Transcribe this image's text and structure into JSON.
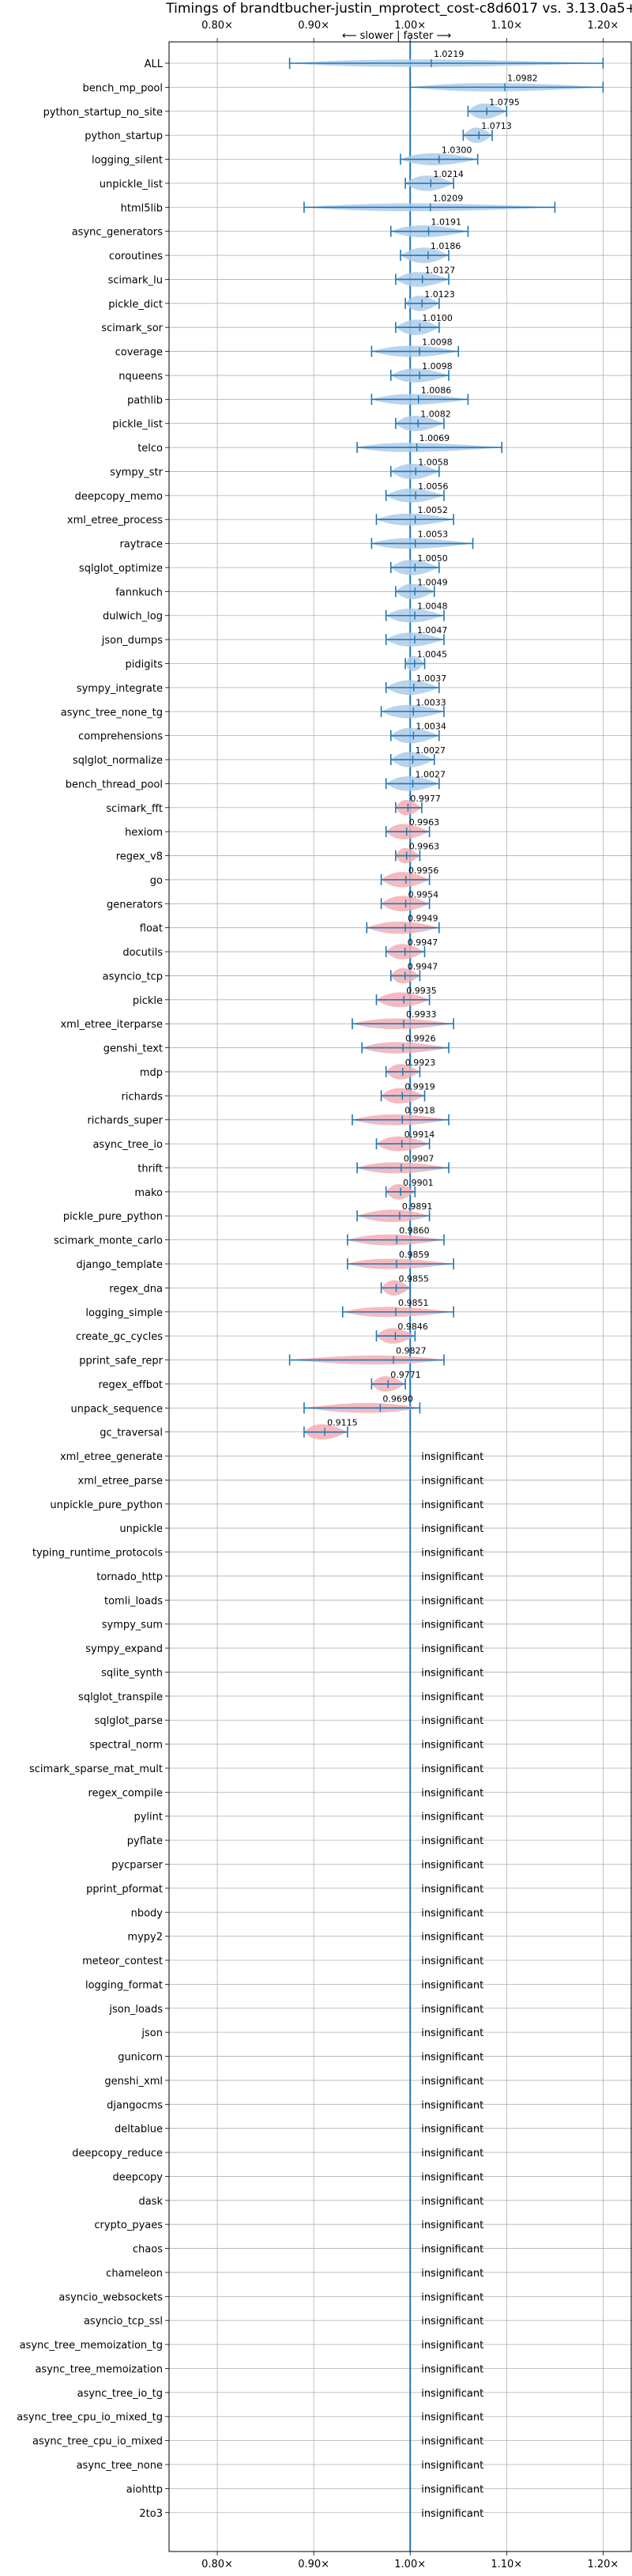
{
  "chart_data": {
    "type": "violin",
    "title": "Timings of brandtbucher-justin_mprotect_cost-c8d6017 vs. 3.13.0a5+",
    "annotation": "⟵ slower | faster ⟶",
    "xlim": [
      0.75,
      1.23
    ],
    "xticks": [
      0.8,
      0.9,
      1.0,
      1.1,
      1.2
    ],
    "xtick_labels": [
      "0.80×",
      "0.90×",
      "1.00×",
      "1.10×",
      "1.20×"
    ],
    "grid": true,
    "colors": {
      "faster": "#aecbea",
      "slower": "#f2aeb4",
      "line": "#1f77b4"
    },
    "insignificant_label": "insignificant",
    "benchmarks": [
      {
        "name": "ALL",
        "value": 1.0219,
        "label": "1.0219",
        "min": 0.875,
        "max": 1.2
      },
      {
        "name": "bench_mp_pool",
        "value": 1.0982,
        "label": "1.0982",
        "min": 1.0,
        "max": 1.2
      },
      {
        "name": "python_startup_no_site",
        "value": 1.0795,
        "label": "1.0795",
        "min": 1.06,
        "max": 1.1
      },
      {
        "name": "python_startup",
        "value": 1.0713,
        "label": "1.0713",
        "min": 1.055,
        "max": 1.085
      },
      {
        "name": "logging_silent",
        "value": 1.03,
        "label": "1.0300",
        "min": 0.99,
        "max": 1.07
      },
      {
        "name": "unpickle_list",
        "value": 1.0214,
        "label": "1.0214",
        "min": 0.995,
        "max": 1.045
      },
      {
        "name": "html5lib",
        "value": 1.0209,
        "label": "1.0209",
        "min": 0.89,
        "max": 1.15
      },
      {
        "name": "async_generators",
        "value": 1.0191,
        "label": "1.0191",
        "min": 0.98,
        "max": 1.06
      },
      {
        "name": "coroutines",
        "value": 1.0186,
        "label": "1.0186",
        "min": 0.99,
        "max": 1.04
      },
      {
        "name": "scimark_lu",
        "value": 1.0127,
        "label": "1.0127",
        "min": 0.985,
        "max": 1.04
      },
      {
        "name": "pickle_dict",
        "value": 1.0123,
        "label": "1.0123",
        "min": 0.995,
        "max": 1.03
      },
      {
        "name": "scimark_sor",
        "value": 1.01,
        "label": "1.0100",
        "min": 0.985,
        "max": 1.03
      },
      {
        "name": "coverage",
        "value": 1.0098,
        "label": "1.0098",
        "min": 0.96,
        "max": 1.05
      },
      {
        "name": "nqueens",
        "value": 1.0098,
        "label": "1.0098",
        "min": 0.98,
        "max": 1.04
      },
      {
        "name": "pathlib",
        "value": 1.0086,
        "label": "1.0086",
        "min": 0.96,
        "max": 1.06
      },
      {
        "name": "pickle_list",
        "value": 1.0082,
        "label": "1.0082",
        "min": 0.985,
        "max": 1.035
      },
      {
        "name": "telco",
        "value": 1.0069,
        "label": "1.0069",
        "min": 0.945,
        "max": 1.095
      },
      {
        "name": "sympy_str",
        "value": 1.0058,
        "label": "1.0058",
        "min": 0.98,
        "max": 1.03
      },
      {
        "name": "deepcopy_memo",
        "value": 1.0056,
        "label": "1.0056",
        "min": 0.975,
        "max": 1.035
      },
      {
        "name": "xml_etree_process",
        "value": 1.0052,
        "label": "1.0052",
        "min": 0.965,
        "max": 1.045
      },
      {
        "name": "raytrace",
        "value": 1.0053,
        "label": "1.0053",
        "min": 0.96,
        "max": 1.065
      },
      {
        "name": "sqlglot_optimize",
        "value": 1.005,
        "label": "1.0050",
        "min": 0.98,
        "max": 1.03
      },
      {
        "name": "fannkuch",
        "value": 1.0049,
        "label": "1.0049",
        "min": 0.985,
        "max": 1.025
      },
      {
        "name": "dulwich_log",
        "value": 1.0048,
        "label": "1.0048",
        "min": 0.975,
        "max": 1.035
      },
      {
        "name": "json_dumps",
        "value": 1.0047,
        "label": "1.0047",
        "min": 0.975,
        "max": 1.035
      },
      {
        "name": "pidigits",
        "value": 1.0045,
        "label": "1.0045",
        "min": 0.995,
        "max": 1.015
      },
      {
        "name": "sympy_integrate",
        "value": 1.0037,
        "label": "1.0037",
        "min": 0.975,
        "max": 1.03
      },
      {
        "name": "async_tree_none_tg",
        "value": 1.0033,
        "label": "1.0033",
        "min": 0.97,
        "max": 1.035
      },
      {
        "name": "comprehensions",
        "value": 1.0034,
        "label": "1.0034",
        "min": 0.98,
        "max": 1.03
      },
      {
        "name": "sqlglot_normalize",
        "value": 1.0027,
        "label": "1.0027",
        "min": 0.98,
        "max": 1.025
      },
      {
        "name": "bench_thread_pool",
        "value": 1.0027,
        "label": "1.0027",
        "min": 0.975,
        "max": 1.03
      },
      {
        "name": "scimark_fft",
        "value": 0.9977,
        "label": "0.9977",
        "min": 0.985,
        "max": 1.012
      },
      {
        "name": "hexiom",
        "value": 0.9963,
        "label": "0.9963",
        "min": 0.975,
        "max": 1.02
      },
      {
        "name": "regex_v8",
        "value": 0.9963,
        "label": "0.9963",
        "min": 0.985,
        "max": 1.01
      },
      {
        "name": "go",
        "value": 0.9956,
        "label": "0.9956",
        "min": 0.97,
        "max": 1.02
      },
      {
        "name": "generators",
        "value": 0.9954,
        "label": "0.9954",
        "min": 0.97,
        "max": 1.02
      },
      {
        "name": "float",
        "value": 0.9949,
        "label": "0.9949",
        "min": 0.955,
        "max": 1.03
      },
      {
        "name": "docutils",
        "value": 0.9947,
        "label": "0.9947",
        "min": 0.975,
        "max": 1.015
      },
      {
        "name": "asyncio_tcp",
        "value": 0.9947,
        "label": "0.9947",
        "min": 0.98,
        "max": 1.01
      },
      {
        "name": "pickle",
        "value": 0.9935,
        "label": "0.9935",
        "min": 0.965,
        "max": 1.02
      },
      {
        "name": "xml_etree_iterparse",
        "value": 0.9933,
        "label": "0.9933",
        "min": 0.94,
        "max": 1.045
      },
      {
        "name": "genshi_text",
        "value": 0.9926,
        "label": "0.9926",
        "min": 0.95,
        "max": 1.04
      },
      {
        "name": "mdp",
        "value": 0.9923,
        "label": "0.9923",
        "min": 0.975,
        "max": 1.01
      },
      {
        "name": "richards",
        "value": 0.9919,
        "label": "0.9919",
        "min": 0.97,
        "max": 1.015
      },
      {
        "name": "richards_super",
        "value": 0.9918,
        "label": "0.9918",
        "min": 0.94,
        "max": 1.04
      },
      {
        "name": "async_tree_io",
        "value": 0.9914,
        "label": "0.9914",
        "min": 0.965,
        "max": 1.02
      },
      {
        "name": "thrift",
        "value": 0.9907,
        "label": "0.9907",
        "min": 0.945,
        "max": 1.04
      },
      {
        "name": "mako",
        "value": 0.9901,
        "label": "0.9901",
        "min": 0.975,
        "max": 1.005
      },
      {
        "name": "pickle_pure_python",
        "value": 0.9891,
        "label": "0.9891",
        "min": 0.945,
        "max": 1.02
      },
      {
        "name": "scimark_monte_carlo",
        "value": 0.986,
        "label": "0.9860",
        "min": 0.935,
        "max": 1.035
      },
      {
        "name": "django_template",
        "value": 0.9859,
        "label": "0.9859",
        "min": 0.935,
        "max": 1.045
      },
      {
        "name": "regex_dna",
        "value": 0.9855,
        "label": "0.9855",
        "min": 0.97,
        "max": 1.0
      },
      {
        "name": "logging_simple",
        "value": 0.9851,
        "label": "0.9851",
        "min": 0.93,
        "max": 1.045
      },
      {
        "name": "create_gc_cycles",
        "value": 0.9846,
        "label": "0.9846",
        "min": 0.965,
        "max": 1.005
      },
      {
        "name": "pprint_safe_repr",
        "value": 0.9827,
        "label": "0.9827",
        "min": 0.875,
        "max": 1.035
      },
      {
        "name": "regex_effbot",
        "value": 0.9771,
        "label": "0.9771",
        "min": 0.96,
        "max": 0.995
      },
      {
        "name": "unpack_sequence",
        "value": 0.969,
        "label": "0.9690",
        "min": 0.89,
        "max": 1.01
      },
      {
        "name": "gc_traversal",
        "value": 0.9115,
        "label": "0.9115",
        "min": 0.89,
        "max": 0.935
      },
      {
        "name": "xml_etree_generate",
        "insignificant": true
      },
      {
        "name": "xml_etree_parse",
        "insignificant": true
      },
      {
        "name": "unpickle_pure_python",
        "insignificant": true
      },
      {
        "name": "unpickle",
        "insignificant": true
      },
      {
        "name": "typing_runtime_protocols",
        "insignificant": true
      },
      {
        "name": "tornado_http",
        "insignificant": true
      },
      {
        "name": "tomli_loads",
        "insignificant": true
      },
      {
        "name": "sympy_sum",
        "insignificant": true
      },
      {
        "name": "sympy_expand",
        "insignificant": true
      },
      {
        "name": "sqlite_synth",
        "insignificant": true
      },
      {
        "name": "sqlglot_transpile",
        "insignificant": true
      },
      {
        "name": "sqlglot_parse",
        "insignificant": true
      },
      {
        "name": "spectral_norm",
        "insignificant": true
      },
      {
        "name": "scimark_sparse_mat_mult",
        "insignificant": true
      },
      {
        "name": "regex_compile",
        "insignificant": true
      },
      {
        "name": "pylint",
        "insignificant": true
      },
      {
        "name": "pyflate",
        "insignificant": true
      },
      {
        "name": "pycparser",
        "insignificant": true
      },
      {
        "name": "pprint_pformat",
        "insignificant": true
      },
      {
        "name": "nbody",
        "insignificant": true
      },
      {
        "name": "mypy2",
        "insignificant": true
      },
      {
        "name": "meteor_contest",
        "insignificant": true
      },
      {
        "name": "logging_format",
        "insignificant": true
      },
      {
        "name": "json_loads",
        "insignificant": true
      },
      {
        "name": "json",
        "insignificant": true
      },
      {
        "name": "gunicorn",
        "insignificant": true
      },
      {
        "name": "genshi_xml",
        "insignificant": true
      },
      {
        "name": "djangocms",
        "insignificant": true
      },
      {
        "name": "deltablue",
        "insignificant": true
      },
      {
        "name": "deepcopy_reduce",
        "insignificant": true
      },
      {
        "name": "deepcopy",
        "insignificant": true
      },
      {
        "name": "dask",
        "insignificant": true
      },
      {
        "name": "crypto_pyaes",
        "insignificant": true
      },
      {
        "name": "chaos",
        "insignificant": true
      },
      {
        "name": "chameleon",
        "insignificant": true
      },
      {
        "name": "asyncio_websockets",
        "insignificant": true
      },
      {
        "name": "asyncio_tcp_ssl",
        "insignificant": true
      },
      {
        "name": "async_tree_memoization_tg",
        "insignificant": true
      },
      {
        "name": "async_tree_memoization",
        "insignificant": true
      },
      {
        "name": "async_tree_io_tg",
        "insignificant": true
      },
      {
        "name": "async_tree_cpu_io_mixed_tg",
        "insignificant": true
      },
      {
        "name": "async_tree_cpu_io_mixed",
        "insignificant": true
      },
      {
        "name": "async_tree_none",
        "insignificant": true
      },
      {
        "name": "aiohttp",
        "insignificant": true
      },
      {
        "name": "2to3",
        "insignificant": true
      }
    ]
  }
}
